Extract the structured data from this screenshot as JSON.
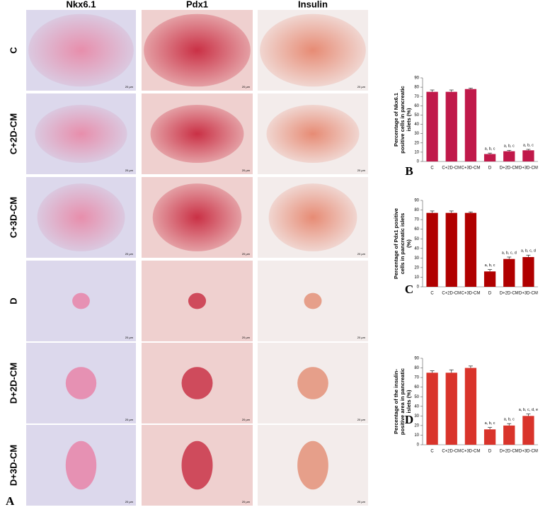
{
  "figure": {
    "panel": "A",
    "columns": [
      "Nkx6.1",
      "Pdx1",
      "Insulin"
    ],
    "rows": [
      "C",
      "C+2D-CM",
      "C+3D-CM",
      "D",
      "D+2D-CM",
      "D+3D-CM"
    ],
    "scale_bar": "20 µm"
  },
  "chart_data": [
    {
      "type": "bar",
      "panel": "B",
      "ylabel": [
        "Percentage of Nkx6.1",
        "positive cells in pancreatic",
        "islets (%)"
      ],
      "categories": [
        "C",
        "C+2D-CM",
        "C+3D-CM",
        "D",
        "D+2D-CM",
        "D+3D-CM"
      ],
      "values": [
        75,
        75,
        78,
        8,
        11,
        12
      ],
      "errors": [
        2,
        2,
        1,
        1,
        1,
        1
      ],
      "annotations": [
        null,
        null,
        null,
        "a, b, c",
        "a, b, c",
        "a, b, c"
      ],
      "color": "#c0194a",
      "ylim": [
        0,
        90
      ],
      "yticks": [
        0,
        10,
        20,
        30,
        40,
        50,
        60,
        70,
        80,
        90
      ]
    },
    {
      "type": "bar",
      "panel": "C",
      "ylabel": [
        "Percentage of Pdx1 positive",
        "cells in pancreatic islets",
        "(%)"
      ],
      "categories": [
        "C",
        "C+2D-CM",
        "C+3D-CM",
        "D",
        "D+2D-CM",
        "D+3D-CM"
      ],
      "values": [
        77,
        77,
        77,
        16,
        29,
        31
      ],
      "errors": [
        2,
        2,
        1,
        2,
        2,
        2
      ],
      "annotations": [
        null,
        null,
        null,
        "a, b, c",
        "a, b, c, d",
        "a, b, c, d"
      ],
      "color": "#b00000",
      "ylim": [
        0,
        90
      ],
      "yticks": [
        0,
        10,
        20,
        30,
        40,
        50,
        60,
        70,
        80,
        90
      ]
    },
    {
      "type": "bar",
      "panel": "D",
      "ylabel": [
        "Percentage of the insulin-",
        "positive area in pancreatic",
        "islets (%)"
      ],
      "categories": [
        "C",
        "C+2D-CM",
        "C+3D-CM",
        "D",
        "D+2D-CM",
        "D+3D-CM"
      ],
      "values": [
        75,
        75,
        80,
        16,
        20,
        30
      ],
      "errors": [
        2,
        3,
        2,
        2,
        2,
        2
      ],
      "annotations": [
        null,
        null,
        null,
        "a, b, c",
        "a, b, c",
        "a, b, c, d, e"
      ],
      "color": "#d9342b",
      "ylim": [
        0,
        90
      ],
      "yticks": [
        0,
        10,
        20,
        30,
        40,
        50,
        60,
        70,
        80,
        90
      ]
    }
  ]
}
